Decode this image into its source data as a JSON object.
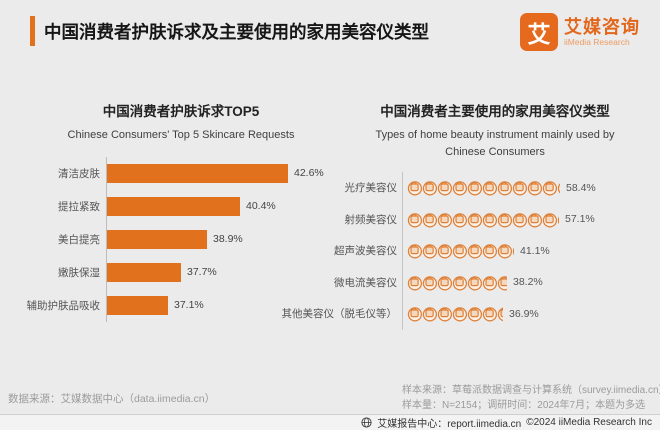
{
  "header": {
    "title": "中国消费者护肤诉求及主要使用的家用美容仪类型",
    "logo": {
      "mark": "艾",
      "name_cn": "艾媒咨询",
      "name_en": "iiMedia Research"
    }
  },
  "colors": {
    "accent": "#E2711D",
    "icon_stroke": "#DE8038",
    "icon_fill": "#F5D9BE",
    "icon_fill_light": "#FBF1E8"
  },
  "chart_data": [
    {
      "type": "bar",
      "orientation": "horizontal",
      "title": "中国消费者护肤诉求TOP5",
      "subtitle": "Chinese Consumers' Top 5 Skincare Requests",
      "categories": [
        "清洁皮肤",
        "提拉紧致",
        "美白提亮",
        "嫩肤保湿",
        "辅助护肤品吸收"
      ],
      "values": [
        42.6,
        40.4,
        38.9,
        37.7,
        37.1
      ],
      "unit": "%",
      "bar_color": "#E2711D",
      "axis_min_hint": 34.3,
      "grid": false,
      "legend": "none"
    },
    {
      "type": "pictogram",
      "title": "中国消费者主要使用的家用美容仪类型",
      "subtitle": "Types of home beauty instrument mainly used by Chinese Consumers",
      "categories": [
        "光疗美容仪",
        "射频美容仪",
        "超声波美容仪",
        "微电流美容仪",
        "其他美容仪（脱毛仪等）"
      ],
      "values": [
        58.4,
        57.1,
        41.1,
        38.2,
        36.9
      ],
      "unit": "%",
      "icon": "beauty-device-icon",
      "percent_per_icon": 5.7,
      "grid": false,
      "legend": "none"
    }
  ],
  "footnotes": {
    "left": "数据来源：艾媒数据中心（data.iimedia.cn）",
    "right_line1": "样本来源：草莓派数据调查与计算系统（survey.iimedia.cn）",
    "right_line2": "样本量：N=2154；调研时间：2024年7月；本题为多选"
  },
  "footer": {
    "label": "艾媒报告中心：report.iimedia.cn",
    "copyright": "©2024  iiMedia Research  Inc"
  }
}
